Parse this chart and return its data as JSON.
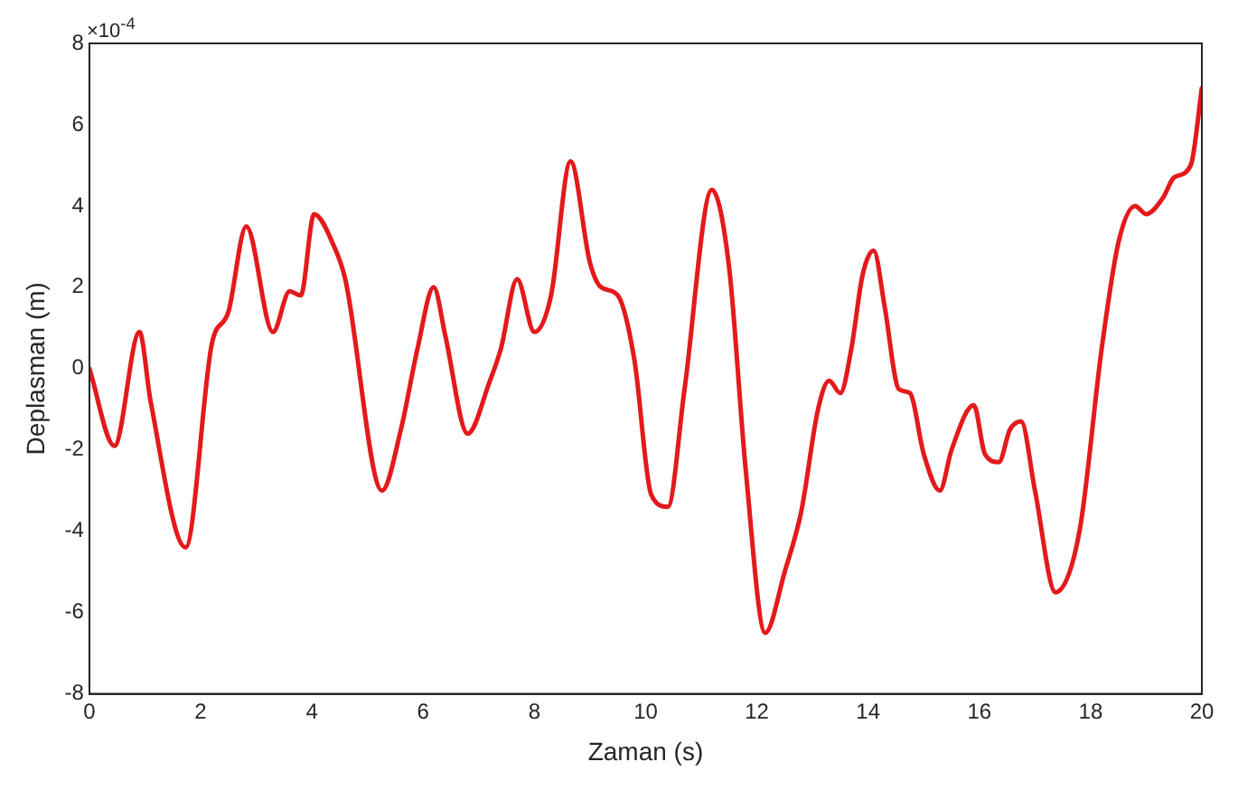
{
  "chart_data": {
    "type": "line",
    "xlabel": "Zaman (s)",
    "ylabel": "Deplasman (m)",
    "annotations": [
      "×10$^{-4}$"
    ],
    "x": [
      0,
      0.45,
      0.9,
      1.1,
      1.73,
      2.2,
      2.5,
      2.82,
      3.3,
      3.6,
      3.8,
      4.04,
      4.4,
      4.6,
      5.26,
      5.6,
      5.9,
      6.19,
      6.4,
      6.8,
      7.2,
      7.4,
      7.69,
      8.0,
      8.3,
      8.65,
      9.0,
      9.2,
      9.5,
      9.8,
      10.1,
      10.4,
      10.7,
      11.19,
      11.5,
      11.8,
      12.15,
      12.5,
      12.8,
      13.1,
      13.3,
      13.5,
      13.7,
      13.9,
      14.1,
      14.3,
      14.55,
      14.75,
      15.0,
      15.29,
      15.5,
      15.9,
      16.1,
      16.35,
      16.55,
      16.75,
      17.0,
      17.37,
      17.8,
      18.2,
      18.5,
      18.8,
      19.0,
      19.3,
      19.5,
      19.8,
      20
    ],
    "series": [
      {
        "color": "#e31a1c",
        "values": [
          0,
          -1.9,
          0.9,
          -0.8,
          -4.4,
          0.6,
          1.4,
          3.5,
          0.9,
          1.9,
          1.8,
          3.8,
          3.0,
          2.2,
          -3.0,
          -1.5,
          0.5,
          2.0,
          0.8,
          -1.6,
          -0.3,
          0.5,
          2.2,
          0.9,
          1.8,
          5.1,
          2.6,
          2.0,
          1.8,
          0.2,
          -3.1,
          -3.4,
          -0.5,
          4.4,
          2.5,
          -2.5,
          -6.5,
          -5.0,
          -3.5,
          -1.0,
          -0.3,
          -0.6,
          0.5,
          2.3,
          2.9,
          1.5,
          -0.5,
          -0.6,
          -2.1,
          -3.0,
          -2.0,
          -0.9,
          -2.1,
          -2.3,
          -1.5,
          -1.3,
          -3.0,
          -5.5,
          -4.0,
          0.5,
          3.1,
          4.0,
          3.8,
          4.2,
          4.7,
          5.0,
          6.9
        ]
      }
    ],
    "xlim": [
      0,
      20
    ],
    "xticks": [
      0,
      2,
      4,
      6,
      8,
      10,
      12,
      14,
      16,
      18,
      20
    ],
    "ylim": [
      -8,
      8
    ],
    "yticks": [
      -8,
      -6,
      -4,
      -2,
      0,
      2,
      4,
      6,
      8
    ],
    "grid": false,
    "legend": false,
    "marker": "none",
    "line_style": "solid"
  }
}
